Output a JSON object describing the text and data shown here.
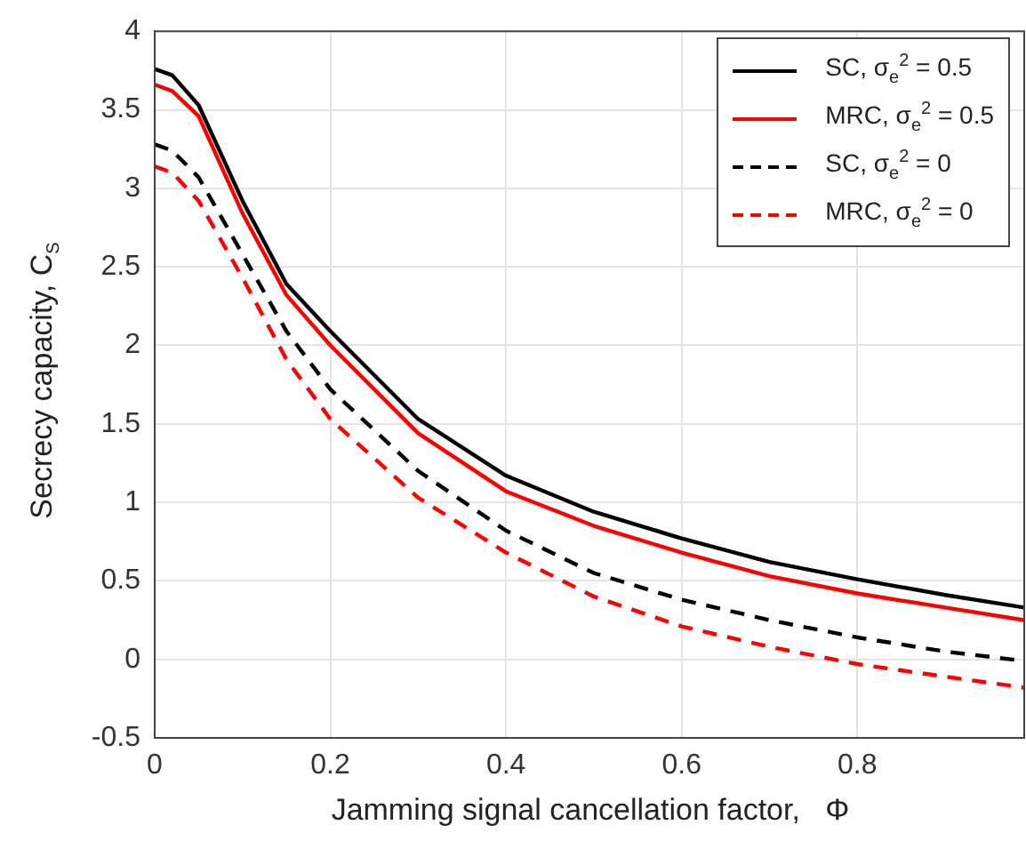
{
  "chart_data": {
    "type": "line",
    "xlabel": "Jamming signal cancellation factor,   Φ",
    "ylabel": "Secrecy capacity, C$_{S}$",
    "x": [
      0,
      0.02,
      0.05,
      0.1,
      0.15,
      0.2,
      0.3,
      0.4,
      0.5,
      0.6,
      0.7,
      0.8,
      0.9,
      0.99
    ],
    "series": [
      {
        "name": "SC, σ$_{e}$$^{2}$ = 0.5",
        "color": "#000000",
        "line_style": "solid",
        "values": [
          3.76,
          3.72,
          3.53,
          2.92,
          2.39,
          2.09,
          1.53,
          1.17,
          0.94,
          0.77,
          0.62,
          0.51,
          0.41,
          0.33
        ]
      },
      {
        "name": "MRC, σ$_{e}$$^{2}$ = 0.5",
        "color": "#ff0000",
        "line_style": "solid",
        "values": [
          3.66,
          3.62,
          3.46,
          2.84,
          2.32,
          2.0,
          1.44,
          1.07,
          0.85,
          0.68,
          0.53,
          0.42,
          0.33,
          0.25
        ]
      },
      {
        "name": "SC, σ$_{e}$$^{2}$ = 0",
        "color": "#000000",
        "line_style": "dashed",
        "values": [
          3.28,
          3.24,
          3.07,
          2.58,
          2.09,
          1.72,
          1.2,
          0.82,
          0.55,
          0.38,
          0.25,
          0.14,
          0.05,
          -0.01
        ]
      },
      {
        "name": "MRC, σ$_{e}$$^{2}$ = 0",
        "color": "#ff0000",
        "line_style": "dashed",
        "values": [
          3.14,
          3.1,
          2.92,
          2.43,
          1.91,
          1.53,
          1.03,
          0.68,
          0.4,
          0.21,
          0.08,
          -0.03,
          -0.11,
          -0.18
        ]
      }
    ],
    "xlim": [
      0,
      0.99
    ],
    "xticks": [
      0,
      0.2,
      0.4,
      0.6,
      0.8
    ],
    "ylim": [
      -0.5,
      4
    ],
    "yticks": [
      -0.5,
      0,
      0.5,
      1,
      1.5,
      2,
      2.5,
      3,
      3.5,
      4
    ],
    "grid": true,
    "legend": "top right",
    "marker": "none"
  }
}
